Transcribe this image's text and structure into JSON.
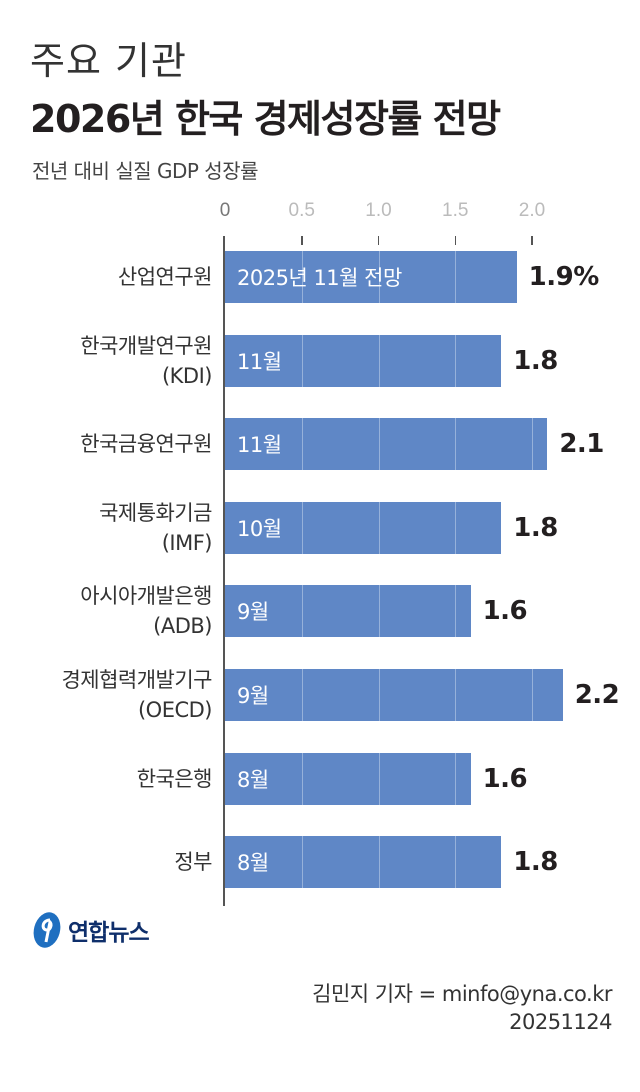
{
  "chart_data": {
    "type": "bar",
    "orientation": "horizontal",
    "kicker": "주요 기관",
    "title": "2026년 한국 경제성장률 전망",
    "subtitle": "전년 대비 실질 GDP 성장률",
    "xlim": [
      0,
      2.2
    ],
    "ticks": [
      "0",
      "0.5",
      "1.0",
      "1.5",
      "2.0"
    ],
    "tick_values": [
      0,
      0.5,
      1.0,
      1.5,
      2.0
    ],
    "categories": [
      [
        "산업연구원"
      ],
      [
        "한국개발연구원",
        "(KDI)"
      ],
      [
        "한국금융연구원"
      ],
      [
        "국제통화기금",
        "(IMF)"
      ],
      [
        "아시아개발은행",
        "(ADB)"
      ],
      [
        "경제협력개발기구",
        "(OECD)"
      ],
      [
        "한국은행"
      ],
      [
        "정부"
      ]
    ],
    "values": [
      1.9,
      1.8,
      2.1,
      1.8,
      1.6,
      2.2,
      1.6,
      1.8
    ],
    "value_labels": [
      "1.9%",
      "1.8",
      "2.1",
      "1.8",
      "1.6",
      "2.2",
      "1.6",
      "1.8"
    ],
    "bar_notes": [
      "2025년 11월 전망",
      "11월",
      "11월",
      "10월",
      "9월",
      "9월",
      "8월",
      "8월"
    ],
    "bar_color": "#5f87c6",
    "grid": true
  },
  "footer": {
    "logo_text": "연합뉴스",
    "credit": "김민지 기자 = minfo@yna.co.kr",
    "date": "20251124"
  }
}
